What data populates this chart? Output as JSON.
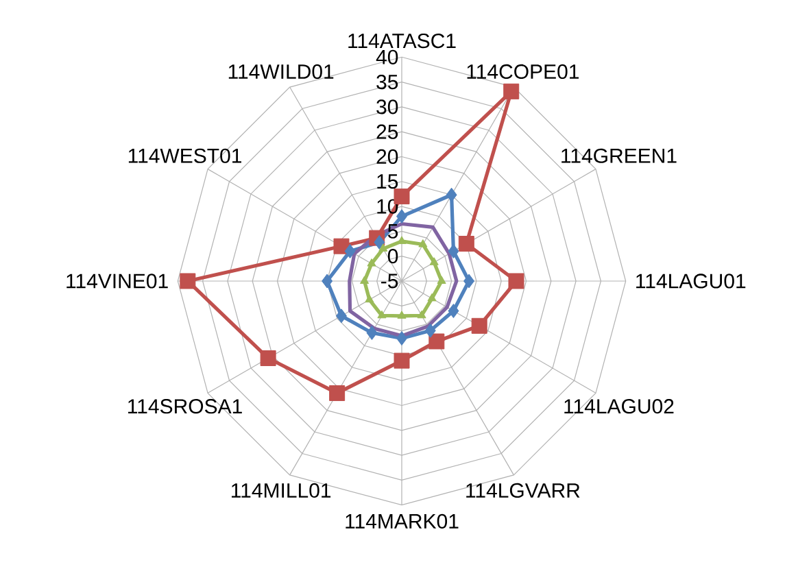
{
  "chart_data": {
    "type": "radar",
    "categories": [
      "114ATASC1",
      "114COPE01",
      "114GREEN1",
      "114LAGU01",
      "114LAGU02",
      "114LGVARR",
      "114MARK01",
      "114MILL01",
      "114SROSA1",
      "114VINE01",
      "114WEST01",
      "114WILD01"
    ],
    "series": [
      {
        "color": "#c0504d",
        "marker": "square",
        "values": [
          12,
          39,
          10,
          18,
          13,
          9,
          11,
          21,
          26,
          38,
          9,
          5
        ]
      },
      {
        "color": "#4f81bd",
        "marker": "diamond",
        "values": [
          8,
          15,
          7,
          8.5,
          7,
          6.5,
          6.5,
          7,
          9,
          10,
          7,
          4
        ]
      },
      {
        "color": "#8064a2",
        "marker": "none",
        "values": [
          6.5,
          7.5,
          6,
          6,
          5.5,
          5.5,
          6,
          6,
          7,
          5.5,
          6,
          5.5
        ]
      },
      {
        "color": "#9bbb59",
        "marker": "triangle",
        "values": [
          3,
          3.5,
          2.5,
          3,
          2,
          3,
          2,
          3,
          2.5,
          2.5,
          2,
          2.5
        ]
      }
    ],
    "ylim": [
      -5,
      40
    ],
    "yticks": [
      -5,
      0,
      5,
      10,
      15,
      20,
      25,
      30,
      35,
      40
    ],
    "grid": true
  }
}
